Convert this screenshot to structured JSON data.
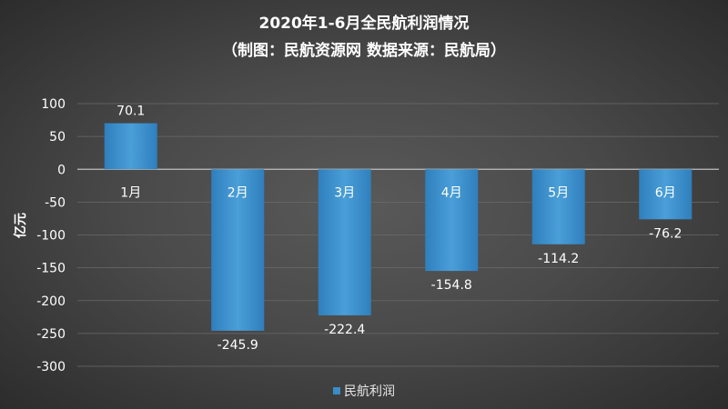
{
  "chart_data": {
    "type": "bar",
    "title": "2020年1-6月全民航利润情况",
    "subtitle": "（制图：民航资源网 数据来源：民航局）",
    "ylabel": "亿元",
    "xlabel": "",
    "categories": [
      "1月",
      "2月",
      "3月",
      "4月",
      "5月",
      "6月"
    ],
    "series": [
      {
        "name": "民航利润",
        "values": [
          70.1,
          -245.9,
          -222.4,
          -154.8,
          -114.2,
          -76.2
        ]
      }
    ],
    "value_labels": [
      "70.1",
      "-245.9",
      "-222.4",
      "-154.8",
      "-114.2",
      "-76.2"
    ],
    "ylim": [
      -300,
      100
    ],
    "yticks": [
      100,
      50,
      0,
      -50,
      -100,
      -150,
      -200,
      -250,
      -300
    ],
    "ytick_labels": [
      "100",
      "50",
      "0",
      "-50",
      "-100",
      "-150",
      "-200",
      "-250",
      "-300"
    ],
    "grid": true,
    "legend": "bottom-center",
    "colors": {
      "bar": "#3a8cc6",
      "bar_light": "#5aaee0",
      "grid": "#6a6a6a",
      "axis": "#bfbfbf"
    }
  }
}
